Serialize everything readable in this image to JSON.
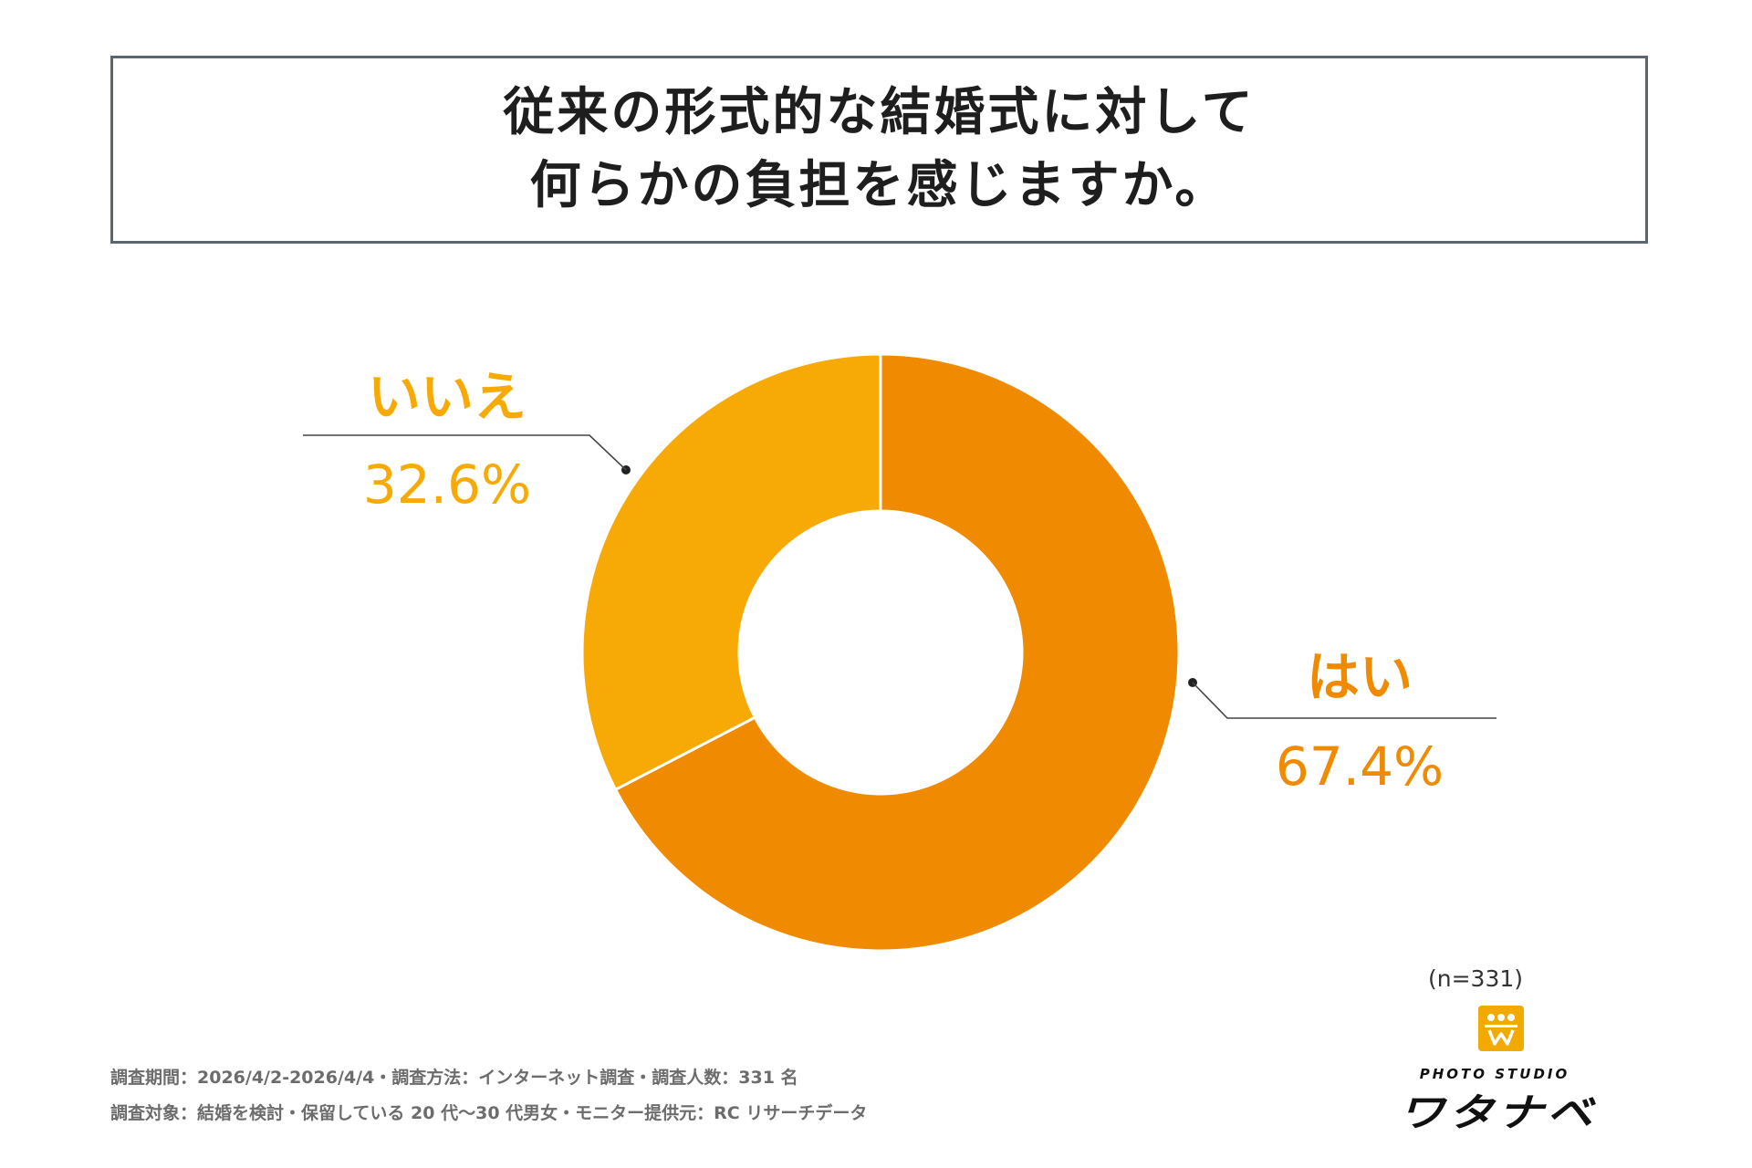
{
  "title": {
    "line1": "従来の形式的な結婚式に対して",
    "line2": "何らかの負担を感じますか。"
  },
  "chart_data": {
    "type": "pie",
    "style": "donut",
    "categories": [
      "はい",
      "いいえ"
    ],
    "values": [
      67.4,
      32.6
    ],
    "value_labels": [
      "67.4%",
      "32.6%"
    ],
    "colors": [
      "#f08a00",
      "#f7aa06"
    ],
    "sample_size": "(n=331)"
  },
  "footnotes": {
    "line1": "調査期間：2026/4/2-2026/4/4・調査方法：インターネット調査・調査人数：331 名",
    "line2": "調査対象：結婚を検討・保留している 20 代〜30 代男女・モニター提供元：RC リサーチデータ"
  },
  "logo": {
    "icon": "crown-w-icon",
    "subtitle": "PHOTO STUDIO",
    "name": "ワタナベ"
  }
}
